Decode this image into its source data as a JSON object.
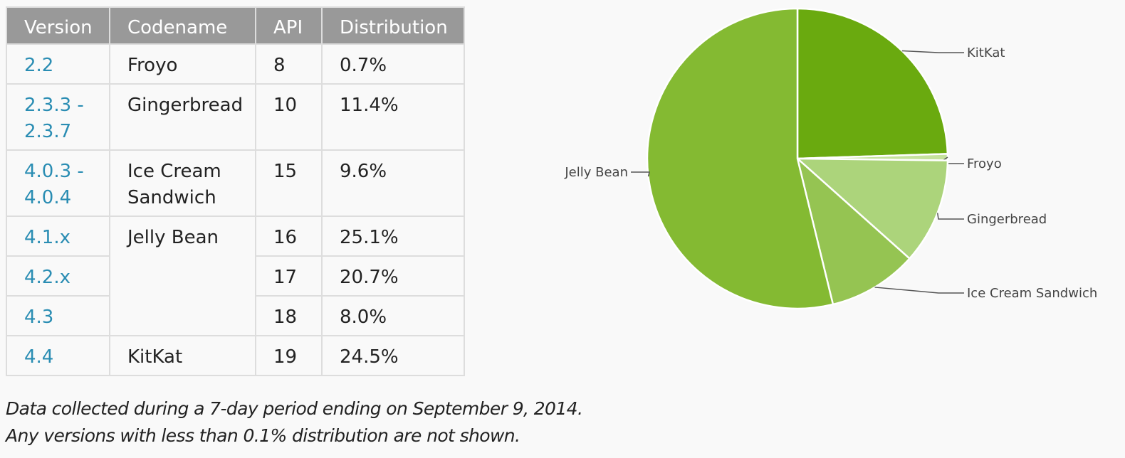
{
  "table": {
    "headers": [
      "Version",
      "Codename",
      "API",
      "Distribution"
    ],
    "rows": [
      {
        "version_line1": "2.2",
        "version_line2": "",
        "codename_line1": "Froyo",
        "codename_line2": "",
        "api": "8",
        "distribution": "0.7%"
      },
      {
        "version_line1": "2.3.3 -",
        "version_line2": "2.3.7",
        "codename_line1": "Gingerbread",
        "codename_line2": "",
        "api": "10",
        "distribution": "11.4%"
      },
      {
        "version_line1": "4.0.3 -",
        "version_line2": "4.0.4",
        "codename_line1": "Ice Cream",
        "codename_line2": "Sandwich",
        "api": "15",
        "distribution": "9.6%"
      },
      {
        "version_line1": "4.1.x",
        "version_line2": "",
        "codename_line1": "Jelly Bean",
        "codename_line2": "",
        "api": "16",
        "distribution": "25.1%"
      },
      {
        "version_line1": "4.2.x",
        "version_line2": "",
        "codename_line1": "",
        "codename_line2": "",
        "api": "17",
        "distribution": "20.7%"
      },
      {
        "version_line1": "4.3",
        "version_line2": "",
        "codename_line1": "",
        "codename_line2": "",
        "api": "18",
        "distribution": "8.0%"
      },
      {
        "version_line1": "4.4",
        "version_line2": "",
        "codename_line1": "KitKat",
        "codename_line2": "",
        "api": "19",
        "distribution": "24.5%"
      }
    ]
  },
  "footnote": {
    "line1": "Data collected during a 7-day period ending on September 9, 2014.",
    "line2": "Any versions with less than 0.1% distribution are not shown."
  },
  "chart_data": {
    "type": "pie",
    "slices": [
      {
        "label": "KitKat",
        "value": 24.5,
        "color": "#6aaa0f"
      },
      {
        "label": "Froyo",
        "value": 0.7,
        "color": "#c5e29c"
      },
      {
        "label": "Gingerbread",
        "value": 11.4,
        "color": "#acd47b"
      },
      {
        "label": "Ice Cream Sandwich",
        "value": 9.6,
        "color": "#95c452"
      },
      {
        "label": "Jelly Bean",
        "value": 53.8,
        "color": "#84ba32"
      }
    ],
    "label_placement": "outside with leader lines"
  }
}
